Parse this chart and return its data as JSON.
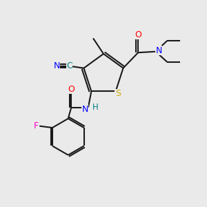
{
  "background_color": "#eaeaea",
  "bond_color": "#1a1a1a",
  "atom_colors": {
    "O": "#ff0000",
    "N": "#0000ff",
    "S": "#ccaa00",
    "F": "#ff00cc",
    "C_cyano": "#008080",
    "H_color": "#008080"
  },
  "figsize": [
    3.0,
    3.0
  ],
  "dpi": 100
}
